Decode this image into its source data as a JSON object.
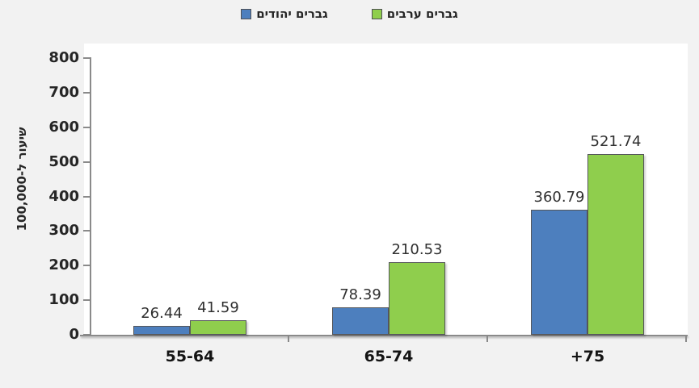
{
  "chart_data": {
    "type": "bar",
    "title": "",
    "categories": [
      "55-64",
      "65-74",
      "+75"
    ],
    "series": [
      {
        "name": "גברים יהודים",
        "color": "#4D7FBE",
        "values": [
          26.44,
          78.39,
          360.79
        ],
        "data_labels": [
          "26.44",
          "78.39",
          "360.79"
        ]
      },
      {
        "name": "גברים ערבים",
        "color": "#8FCE4D",
        "values": [
          41.59,
          210.53,
          521.74
        ],
        "data_labels": [
          "41.59",
          "210.53",
          "521.74"
        ]
      }
    ],
    "xlabel": "",
    "ylabel": "שיעור ל-100,000",
    "ylim": [
      0,
      800
    ],
    "ytick_step": 100,
    "grid": false,
    "legend_position": "top",
    "plot_background": "#FFFFFF",
    "page_background": "#F2F2F2",
    "axis_color": "#8A8A8A",
    "bar_border_color": "#55565A",
    "text_color": "#262626"
  }
}
